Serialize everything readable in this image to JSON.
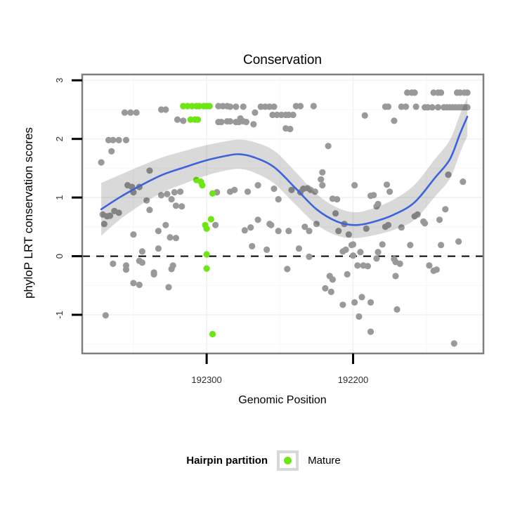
{
  "title": "Conservation",
  "axes": {
    "x": {
      "label": "Genomic Position",
      "ticks": [
        {
          "value": 192300,
          "label": "192300"
        },
        {
          "value": 192200,
          "label": "192200"
        }
      ],
      "minor_ticks": [
        192350,
        192250,
        192150
      ]
    },
    "y": {
      "label": "phyloP LRT conservation scores",
      "ticks": [
        {
          "value": 3,
          "label": "3"
        },
        {
          "value": 2,
          "label": "2"
        },
        {
          "value": 1,
          "label": "1"
        },
        {
          "value": 0,
          "label": "0"
        },
        {
          "value": -1,
          "label": "-1"
        }
      ],
      "minor_ticks": [
        2.5,
        1.5,
        0.5,
        -0.5,
        -1.5
      ]
    }
  },
  "legend": {
    "title": "Hairpin partition",
    "items": [
      {
        "label": "Mature",
        "color": "#6EE614"
      }
    ]
  },
  "colors": {
    "point_other": "#999999",
    "point_mature": "#6EE614",
    "smooth_line": "#3D63DB",
    "ribbon": "rgba(0,0,0,0.15)",
    "zero_line": "#000000",
    "panel_border": "#7F7F7F",
    "grid_major": "#f1f1f1",
    "grid_minor": "#f9f9f9",
    "tick_mark": "#000000"
  },
  "chart_data": {
    "type": "scatter",
    "title": "Conservation",
    "xlabel": "Genomic Position",
    "ylabel": "phyloP LRT conservation scores",
    "x_reversed": true,
    "xlim": [
      192385,
      192111
    ],
    "ylim": [
      -1.66,
      3.1
    ],
    "reference_line_y": 0,
    "legend_position": "bottom",
    "grid": "faint major and minor gridlines on white panel",
    "series": [
      {
        "name": "Other (hairpin)",
        "type": "points",
        "color": "#999999",
        "points": [
          [
            192163,
            2.79
          ],
          [
            192160,
            2.79
          ],
          [
            192158,
            2.79
          ],
          [
            192145,
            2.79
          ],
          [
            192142,
            2.79
          ],
          [
            192140,
            2.79
          ],
          [
            192129,
            2.79
          ],
          [
            192127,
            2.79
          ],
          [
            192124,
            2.79
          ],
          [
            192122,
            2.79
          ],
          [
            192292,
            2.56
          ],
          [
            192289,
            2.56
          ],
          [
            192286,
            2.56
          ],
          [
            192284,
            2.55
          ],
          [
            192280,
            2.55
          ],
          [
            192275,
            2.55
          ],
          [
            192263,
            2.55
          ],
          [
            192260,
            2.55
          ],
          [
            192257,
            2.55
          ],
          [
            192254,
            2.55
          ],
          [
            192239,
            2.56
          ],
          [
            192236,
            2.56
          ],
          [
            192227,
            2.56
          ],
          [
            192178,
            2.55
          ],
          [
            192176,
            2.55
          ],
          [
            192167,
            2.55
          ],
          [
            192164,
            2.55
          ],
          [
            192157,
            2.55
          ],
          [
            192151,
            2.54
          ],
          [
            192149,
            2.54
          ],
          [
            192146,
            2.54
          ],
          [
            192142,
            2.54
          ],
          [
            192138,
            2.54
          ],
          [
            192136,
            2.54
          ],
          [
            192134,
            2.54
          ],
          [
            192132,
            2.54
          ],
          [
            192130,
            2.54
          ],
          [
            192128,
            2.54
          ],
          [
            192126,
            2.54
          ],
          [
            192124,
            2.54
          ],
          [
            192122,
            2.54
          ],
          [
            192356,
            2.45
          ],
          [
            192352,
            2.45
          ],
          [
            192348,
            2.45
          ],
          [
            192331,
            2.5
          ],
          [
            192328,
            2.5
          ],
          [
            192267,
            2.45
          ],
          [
            192255,
            2.41
          ],
          [
            192252,
            2.41
          ],
          [
            192249,
            2.41
          ],
          [
            192246,
            2.41
          ],
          [
            192244,
            2.41
          ],
          [
            192241,
            2.41
          ],
          [
            192192,
            2.4
          ],
          [
            192172,
            2.31
          ],
          [
            192320,
            2.33
          ],
          [
            192316,
            2.31
          ],
          [
            192292,
            2.29
          ],
          [
            192290,
            2.29
          ],
          [
            192286,
            2.3
          ],
          [
            192284,
            2.3
          ],
          [
            192280,
            2.29
          ],
          [
            192278,
            2.29
          ],
          [
            192277,
            2.35
          ],
          [
            192275,
            2.3
          ],
          [
            192273,
            2.29
          ],
          [
            192268,
            2.25
          ],
          [
            192246,
            2.18
          ],
          [
            192243,
            2.17
          ],
          [
            192367,
            1.98
          ],
          [
            192364,
            1.98
          ],
          [
            192360,
            1.98
          ],
          [
            192355,
            1.98
          ],
          [
            192217,
            1.88
          ],
          [
            192365,
            1.79
          ],
          [
            192372,
            1.6
          ],
          [
            192339,
            1.46
          ],
          [
            192221,
            1.43
          ],
          [
            192135,
            1.39
          ],
          [
            192354,
            1.21
          ],
          [
            192351,
            1.18
          ],
          [
            192350,
            1.09
          ],
          [
            192346,
            1.18
          ],
          [
            192331,
            1.04
          ],
          [
            192327,
            1.06
          ],
          [
            192324,
            0.97
          ],
          [
            192322,
            1.09
          ],
          [
            192321,
            0.86
          ],
          [
            192318,
            1.1
          ],
          [
            192317,
            0.85
          ],
          [
            192293,
            1.09
          ],
          [
            192284,
            1.1
          ],
          [
            192281,
            1.13
          ],
          [
            192272,
            1.1
          ],
          [
            192265,
            1.21
          ],
          [
            192254,
            1.15
          ],
          [
            192251,
            0.97
          ],
          [
            192242,
            1.13
          ],
          [
            192222,
            1.31
          ],
          [
            192221,
            1.21
          ],
          [
            192236,
            1.09
          ],
          [
            192234,
            1.15
          ],
          [
            192231,
            1.16
          ],
          [
            192229,
            1.13
          ],
          [
            192226,
            1.1
          ],
          [
            192199,
            1.21
          ],
          [
            192177,
            1.22
          ],
          [
            192175,
            1.1
          ],
          [
            192214,
            0.98
          ],
          [
            192211,
            0.97
          ],
          [
            192188,
            1.03
          ],
          [
            192186,
            1.04
          ],
          [
            192183,
            0.89
          ],
          [
            192184,
            0.85
          ],
          [
            192212,
            0.73
          ],
          [
            192125,
            1.27
          ],
          [
            192371,
            0.71
          ],
          [
            192368,
            0.68
          ],
          [
            192366,
            0.69
          ],
          [
            192363,
            0.77
          ],
          [
            192360,
            0.74
          ],
          [
            192341,
            0.95
          ],
          [
            192339,
            0.79
          ],
          [
            192370,
            0.55
          ],
          [
            192350,
            0.37
          ],
          [
            192333,
            0.43
          ],
          [
            192328,
            0.53
          ],
          [
            192325,
            0.32
          ],
          [
            192321,
            0.31
          ],
          [
            192294,
            0.53
          ],
          [
            192274,
            0.44
          ],
          [
            192270,
            0.49
          ],
          [
            192265,
            0.62
          ],
          [
            192257,
            0.55
          ],
          [
            192256,
            0.53
          ],
          [
            192251,
            0.43
          ],
          [
            192244,
            0.43
          ],
          [
            192237,
            0.13
          ],
          [
            192233,
            0.5
          ],
          [
            192230,
            0.43
          ],
          [
            192225,
            0.55
          ],
          [
            192210,
            0.43
          ],
          [
            192206,
            0.55
          ],
          [
            192203,
            0.37
          ],
          [
            192191,
            0.47
          ],
          [
            192178,
            0.5
          ],
          [
            192176,
            0.53
          ],
          [
            192167,
            0.49
          ],
          [
            192158,
            0.68
          ],
          [
            192156,
            0.71
          ],
          [
            192152,
            0.59
          ],
          [
            192151,
            0.56
          ],
          [
            192141,
            0.62
          ],
          [
            192137,
            0.8
          ],
          [
            192269,
            0.17
          ],
          [
            192259,
            0.11
          ],
          [
            192344,
            0.08
          ],
          [
            192333,
            0.13
          ],
          [
            192207,
            0.08
          ],
          [
            192205,
            0.11
          ],
          [
            192201,
            0.19
          ],
          [
            192200,
            0.2
          ],
          [
            192195,
            0.07
          ],
          [
            192183,
            0.07
          ],
          [
            192180,
            0.2
          ],
          [
            192161,
            0.19
          ],
          [
            192140,
            0.19
          ],
          [
            192128,
            0.25
          ],
          [
            192364,
            -0.13
          ],
          [
            192355,
            -0.16
          ],
          [
            192346,
            -0.08
          ],
          [
            192344,
            -0.11
          ],
          [
            192336,
            -0.28
          ],
          [
            192323,
            -0.16
          ],
          [
            192230,
            -0.01
          ],
          [
            192200,
            0.01
          ],
          [
            192184,
            -0.04
          ],
          [
            192172,
            -0.05
          ],
          [
            192171,
            -0.1
          ],
          [
            192168,
            -0.13
          ],
          [
            192197,
            -0.16
          ],
          [
            192193,
            -0.16
          ],
          [
            192190,
            -0.17
          ],
          [
            192148,
            -0.16
          ],
          [
            192145,
            -0.25
          ],
          [
            192143,
            -0.23
          ],
          [
            192245,
            -0.22
          ],
          [
            192355,
            -0.23
          ],
          [
            192336,
            -0.31
          ],
          [
            192324,
            -0.22
          ],
          [
            192350,
            -0.46
          ],
          [
            192346,
            -0.49
          ],
          [
            192326,
            -0.53
          ],
          [
            192216,
            -0.34
          ],
          [
            192214,
            -0.4
          ],
          [
            192204,
            -0.31
          ],
          [
            192171,
            -0.34
          ],
          [
            192219,
            -0.55
          ],
          [
            192215,
            -0.61
          ],
          [
            192207,
            -0.83
          ],
          [
            192199,
            -0.79
          ],
          [
            192194,
            -0.7
          ],
          [
            192188,
            -0.79
          ],
          [
            192170,
            -0.91
          ],
          [
            192196,
            -1.03
          ],
          [
            192369,
            -1.01
          ],
          [
            192188,
            -1.29
          ],
          [
            192131,
            -1.49
          ]
        ]
      },
      {
        "name": "Mature",
        "type": "points",
        "color": "#6EE614",
        "points": [
          [
            192316,
            2.56
          ],
          [
            192313,
            2.56
          ],
          [
            192310,
            2.56
          ],
          [
            192307,
            2.56
          ],
          [
            192305,
            2.56
          ],
          [
            192302,
            2.56
          ],
          [
            192300,
            2.56
          ],
          [
            192298,
            2.56
          ],
          [
            192311,
            2.33
          ],
          [
            192308,
            2.33
          ],
          [
            192306,
            2.33
          ],
          [
            192307,
            1.3
          ],
          [
            192304,
            1.27
          ],
          [
            192303,
            1.21
          ],
          [
            192296,
            1.07
          ],
          [
            192297,
            0.63
          ],
          [
            192301,
            0.53
          ],
          [
            192300,
            0.47
          ],
          [
            192300,
            0.03
          ],
          [
            192300,
            -0.21
          ],
          [
            192296,
            -1.33
          ]
        ]
      },
      {
        "name": "Loess smooth with confidence ribbon",
        "type": "line+ribbon",
        "color": "#3D63DB",
        "points_format": "[genomic_position, fitted_score, ribbon_halfwidth]",
        "points": [
          [
            192372,
            0.8,
            0.45
          ],
          [
            192359,
            1.01,
            0.38
          ],
          [
            192344,
            1.22,
            0.33
          ],
          [
            192330,
            1.39,
            0.3
          ],
          [
            192316,
            1.51,
            0.28
          ],
          [
            192301,
            1.63,
            0.26
          ],
          [
            192287,
            1.71,
            0.25
          ],
          [
            192278,
            1.74,
            0.25
          ],
          [
            192268,
            1.69,
            0.26
          ],
          [
            192254,
            1.52,
            0.28
          ],
          [
            192239,
            1.15,
            0.28
          ],
          [
            192225,
            0.8,
            0.26
          ],
          [
            192211,
            0.59,
            0.24
          ],
          [
            192199,
            0.53,
            0.22
          ],
          [
            192187,
            0.58,
            0.23
          ],
          [
            192172,
            0.71,
            0.26
          ],
          [
            192158,
            0.92,
            0.3
          ],
          [
            192144,
            1.34,
            0.32
          ],
          [
            192134,
            1.65,
            0.33
          ],
          [
            192127,
            2.09,
            0.33
          ],
          [
            192122,
            2.38,
            0.33
          ]
        ]
      }
    ]
  }
}
